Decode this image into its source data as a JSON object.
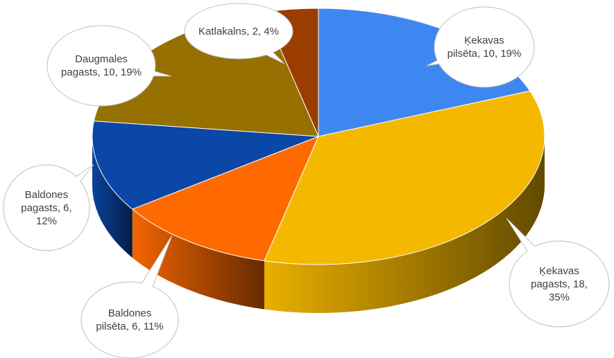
{
  "chart_data": {
    "type": "pie",
    "categories": [
      "Ķekavas pilsēta",
      "Ķekavas pagasts",
      "Baldones pilsēta",
      "Baldones pagasts",
      "Daugmales pagasts",
      "Katlakalns"
    ],
    "values": [
      10,
      18,
      6,
      6,
      10,
      2
    ],
    "value_labels": [
      "Ķekavas pilsēta, 10, 19%",
      "Ķekavas pagasts, 18, 35%",
      "Baldones pilsēta, 6, 11%",
      "Baldones pagasts, 6, 12%",
      "Daugmales pagasts, 10, 19%",
      "Katlakalns, 2, 4%"
    ],
    "colors": [
      "#3f87f0",
      "#f5b800",
      "#ff6a00",
      "#0a47a6",
      "#967000",
      "#9c3d00"
    ]
  }
}
